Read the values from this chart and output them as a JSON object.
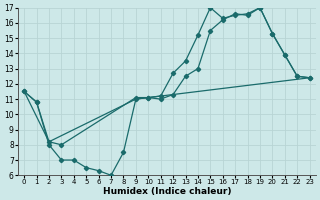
{
  "xlabel": "Humidex (Indice chaleur)",
  "xlim": [
    -0.5,
    23.5
  ],
  "ylim": [
    6,
    17
  ],
  "xticks": [
    0,
    1,
    2,
    3,
    4,
    5,
    6,
    7,
    8,
    9,
    10,
    11,
    12,
    13,
    14,
    15,
    16,
    17,
    18,
    19,
    20,
    21,
    22,
    23
  ],
  "yticks": [
    6,
    7,
    8,
    9,
    10,
    11,
    12,
    13,
    14,
    15,
    16,
    17
  ],
  "bg_color": "#cde8e8",
  "line_color": "#1a6b6b",
  "grid_color": "#b8d4d4",
  "line1_x": [
    0,
    1,
    2,
    3,
    4,
    5,
    6,
    7,
    8,
    9,
    10,
    11,
    12,
    13,
    14,
    15,
    16,
    17,
    18,
    19,
    20,
    21,
    22,
    23
  ],
  "line1_y": [
    11.5,
    10.8,
    8.0,
    7.0,
    7.0,
    6.5,
    6.3,
    6.0,
    7.5,
    11.0,
    11.1,
    11.2,
    12.7,
    13.5,
    15.2,
    17.0,
    16.3,
    16.5,
    16.6,
    17.0,
    15.3,
    13.9,
    12.5,
    12.4
  ],
  "line2_x": [
    0,
    1,
    2,
    3,
    9,
    10,
    11,
    12,
    13,
    14,
    15,
    16,
    17,
    18,
    19,
    20,
    21,
    22,
    23
  ],
  "line2_y": [
    11.5,
    10.8,
    8.2,
    8.0,
    11.1,
    11.1,
    11.0,
    11.3,
    12.5,
    13.0,
    15.5,
    16.2,
    16.6,
    16.5,
    17.0,
    15.3,
    13.9,
    12.5,
    12.4
  ],
  "line3_x": [
    0,
    2,
    9,
    23
  ],
  "line3_y": [
    11.5,
    8.2,
    11.0,
    12.4
  ]
}
